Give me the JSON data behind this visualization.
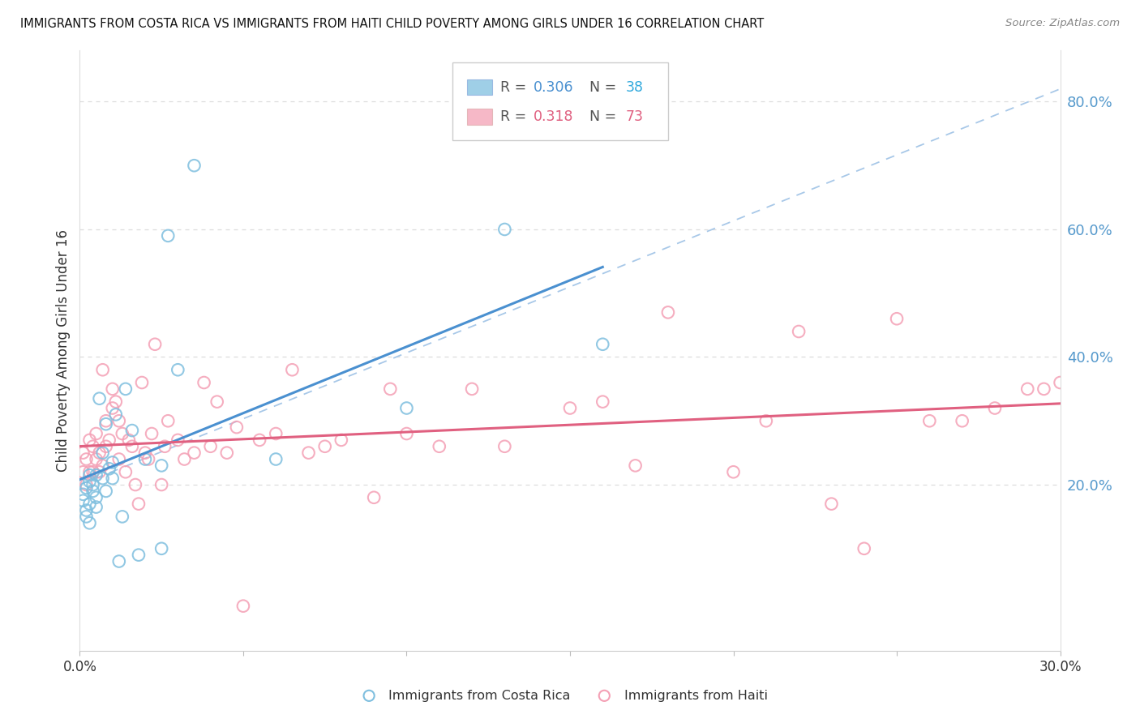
{
  "title": "IMMIGRANTS FROM COSTA RICA VS IMMIGRANTS FROM HAITI CHILD POVERTY AMONG GIRLS UNDER 16 CORRELATION CHART",
  "source": "Source: ZipAtlas.com",
  "ylabel": "Child Poverty Among Girls Under 16",
  "x_min": 0.0,
  "x_max": 0.3,
  "y_min": -0.06,
  "y_max": 0.88,
  "y_ticks_right": [
    0.2,
    0.4,
    0.6,
    0.8
  ],
  "y_tick_labels_right": [
    "20.0%",
    "40.0%",
    "60.0%",
    "80.0%"
  ],
  "x_ticks": [
    0.0,
    0.05,
    0.1,
    0.15,
    0.2,
    0.25,
    0.3
  ],
  "x_tick_labels": [
    "0.0%",
    "",
    "",
    "",
    "",
    "",
    "30.0%"
  ],
  "legend_r1": "0.306",
  "legend_n1": "38",
  "legend_r2": "0.318",
  "legend_n2": "73",
  "label_costa_rica": "Immigrants from Costa Rica",
  "label_haiti": "Immigrants from Haiti",
  "color_costa_rica": "#7fbfdf",
  "color_haiti": "#f4a0b5",
  "color_line_costa_rica": "#4a90d0",
  "color_line_haiti": "#e06080",
  "color_diag": "#a8c8e8",
  "color_axis_right": "#5599cc",
  "color_r_cr": "#4a90d0",
  "color_n_cr": "#33aadd",
  "color_r_ht": "#e06080",
  "color_n_ht": "#e06080",
  "costa_rica_x": [
    0.001,
    0.001,
    0.002,
    0.002,
    0.002,
    0.003,
    0.003,
    0.003,
    0.003,
    0.004,
    0.004,
    0.005,
    0.005,
    0.005,
    0.006,
    0.007,
    0.007,
    0.008,
    0.008,
    0.009,
    0.01,
    0.01,
    0.011,
    0.012,
    0.013,
    0.014,
    0.016,
    0.018,
    0.02,
    0.025,
    0.025,
    0.027,
    0.03,
    0.035,
    0.06,
    0.1,
    0.13,
    0.16
  ],
  "costa_rica_y": [
    0.175,
    0.185,
    0.15,
    0.16,
    0.195,
    0.205,
    0.215,
    0.17,
    0.14,
    0.19,
    0.2,
    0.215,
    0.18,
    0.165,
    0.335,
    0.25,
    0.21,
    0.295,
    0.19,
    0.225,
    0.21,
    0.235,
    0.31,
    0.08,
    0.15,
    0.35,
    0.285,
    0.09,
    0.24,
    0.23,
    0.1,
    0.59,
    0.38,
    0.7,
    0.24,
    0.32,
    0.6,
    0.42
  ],
  "haiti_x": [
    0.001,
    0.001,
    0.002,
    0.002,
    0.003,
    0.003,
    0.004,
    0.004,
    0.005,
    0.005,
    0.006,
    0.006,
    0.007,
    0.007,
    0.008,
    0.008,
    0.009,
    0.01,
    0.01,
    0.011,
    0.012,
    0.012,
    0.013,
    0.014,
    0.015,
    0.016,
    0.017,
    0.018,
    0.019,
    0.02,
    0.021,
    0.022,
    0.023,
    0.025,
    0.026,
    0.027,
    0.03,
    0.032,
    0.035,
    0.038,
    0.04,
    0.042,
    0.045,
    0.048,
    0.05,
    0.055,
    0.06,
    0.065,
    0.07,
    0.075,
    0.08,
    0.09,
    0.095,
    0.1,
    0.11,
    0.12,
    0.13,
    0.15,
    0.16,
    0.17,
    0.18,
    0.2,
    0.21,
    0.22,
    0.23,
    0.24,
    0.25,
    0.26,
    0.27,
    0.28,
    0.29,
    0.295,
    0.3
  ],
  "haiti_y": [
    0.22,
    0.25,
    0.2,
    0.24,
    0.22,
    0.27,
    0.22,
    0.26,
    0.28,
    0.24,
    0.25,
    0.22,
    0.23,
    0.38,
    0.26,
    0.3,
    0.27,
    0.32,
    0.35,
    0.33,
    0.24,
    0.3,
    0.28,
    0.22,
    0.27,
    0.26,
    0.2,
    0.17,
    0.36,
    0.25,
    0.24,
    0.28,
    0.42,
    0.2,
    0.26,
    0.3,
    0.27,
    0.24,
    0.25,
    0.36,
    0.26,
    0.33,
    0.25,
    0.29,
    0.01,
    0.27,
    0.28,
    0.38,
    0.25,
    0.26,
    0.27,
    0.18,
    0.35,
    0.28,
    0.26,
    0.35,
    0.26,
    0.32,
    0.33,
    0.23,
    0.47,
    0.22,
    0.3,
    0.44,
    0.17,
    0.1,
    0.46,
    0.3,
    0.3,
    0.32,
    0.35,
    0.35,
    0.36
  ]
}
